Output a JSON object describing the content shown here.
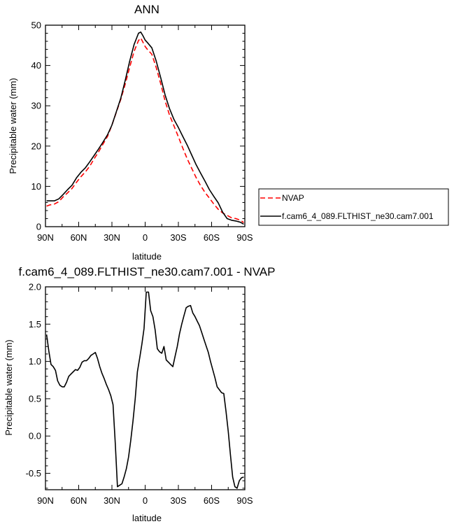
{
  "chart_data": [
    {
      "type": "line",
      "title": "ANN",
      "xlabel": "latitude",
      "ylabel": "Precipitable water (mm)",
      "xlim": [
        90,
        -90
      ],
      "ylim": [
        0,
        50
      ],
      "x_ticks": [
        90,
        60,
        30,
        0,
        -30,
        -60,
        -90
      ],
      "x_tick_labels": [
        "90N",
        "60N",
        "30N",
        "0",
        "30S",
        "60S",
        "90S"
      ],
      "y_ticks": [
        0,
        10,
        20,
        30,
        40,
        50
      ],
      "y_tick_labels": [
        "0",
        "10",
        "20",
        "30",
        "40",
        "50"
      ],
      "legend": {
        "placement": "outside-right"
      },
      "series": [
        {
          "name": "NVAP",
          "color": "#ff0000",
          "dash": "dashed",
          "x": [
            89,
            86,
            82,
            78,
            74,
            70,
            66,
            62,
            58,
            54,
            50,
            46,
            42,
            38,
            34,
            30,
            26,
            22,
            18,
            14,
            10,
            6,
            4,
            2,
            0,
            -2,
            -6,
            -10,
            -14,
            -18,
            -22,
            -26,
            -30,
            -34,
            -38,
            -42,
            -46,
            -50,
            -54,
            -58,
            -62,
            -66,
            -70,
            -74,
            -78,
            -82,
            -86,
            -89
          ],
          "y": [
            5.1,
            5.4,
            5.6,
            6.2,
            7.4,
            8.4,
            9.5,
            11.0,
            12.4,
            13.6,
            15.0,
            16.9,
            18.6,
            20.5,
            22.4,
            25.2,
            28.4,
            31.6,
            35.4,
            39.5,
            43.5,
            46.2,
            46.8,
            45.8,
            44.7,
            44.0,
            42.8,
            39.5,
            35.5,
            31.2,
            27.7,
            25.0,
            22.3,
            19.5,
            16.8,
            14.5,
            12.2,
            10.2,
            8.5,
            7.1,
            5.6,
            4.3,
            3.4,
            2.8,
            2.2,
            2.0,
            1.6,
            1.0
          ]
        },
        {
          "name": "f.cam6_4_089.FLTHIST_ne30.cam7.001",
          "color": "#000000",
          "dash": "solid",
          "x": [
            89,
            86,
            82,
            78,
            74,
            70,
            66,
            62,
            58,
            54,
            50,
            46,
            42,
            38,
            34,
            30,
            26,
            22,
            18,
            14,
            10,
            6,
            4,
            2,
            0,
            -2,
            -6,
            -10,
            -14,
            -18,
            -22,
            -26,
            -30,
            -34,
            -38,
            -42,
            -46,
            -50,
            -54,
            -58,
            -62,
            -66,
            -70,
            -74,
            -78,
            -82,
            -86,
            -89
          ],
          "y": [
            6.4,
            6.4,
            6.4,
            6.9,
            8.0,
            9.2,
            10.3,
            12.1,
            13.5,
            14.6,
            16.1,
            17.7,
            19.3,
            21.0,
            22.8,
            25.2,
            28.5,
            31.9,
            36.3,
            41.0,
            45.2,
            48.0,
            48.3,
            47.4,
            46.3,
            45.7,
            44.4,
            41.1,
            37.0,
            32.7,
            29.3,
            26.6,
            24.6,
            22.4,
            20.2,
            17.8,
            15.4,
            13.3,
            11.3,
            9.2,
            7.5,
            5.9,
            3.6,
            2.0,
            1.6,
            1.4,
            1.1,
            0.6
          ]
        }
      ]
    },
    {
      "type": "line",
      "title": "f.cam6_4_089.FLTHIST_ne30.cam7.001 - NVAP",
      "xlabel": "latitude",
      "ylabel": "Precipitable water (mm)",
      "xlim": [
        90,
        -90
      ],
      "ylim": [
        -0.72,
        2.0
      ],
      "x_ticks": [
        90,
        60,
        30,
        0,
        -30,
        -60,
        -90
      ],
      "x_tick_labels": [
        "90N",
        "60N",
        "30N",
        "0",
        "30S",
        "60S",
        "90S"
      ],
      "y_ticks": [
        -0.5,
        0,
        0.5,
        1,
        1.5,
        2
      ],
      "y_tick_labels": [
        "-0.5",
        "0.0",
        "0.5",
        "1.0",
        "1.5",
        "2.0"
      ],
      "series": [
        {
          "color": "#000000",
          "dash": "solid",
          "x": [
            89,
            87,
            85,
            83,
            81,
            79,
            77,
            75,
            73,
            71,
            69,
            67,
            65,
            63,
            61,
            59,
            57,
            55,
            53,
            51,
            49,
            47,
            45,
            43,
            41,
            39,
            37,
            35,
            33,
            31,
            29,
            27,
            25,
            23,
            21,
            19,
            17,
            15,
            13,
            11,
            9,
            7,
            5,
            3,
            1,
            -1,
            -3,
            -5,
            -7,
            -9,
            -11,
            -13,
            -15,
            -17,
            -19,
            -21,
            -23,
            -25,
            -27,
            -29,
            -31,
            -33,
            -35,
            -37,
            -39,
            -41,
            -43,
            -45,
            -47,
            -49,
            -51,
            -53,
            -55,
            -57,
            -59,
            -61,
            -63,
            -65,
            -67,
            -69,
            -71,
            -73,
            -75,
            -77,
            -79,
            -81,
            -83,
            -85,
            -87,
            -89
          ],
          "y": [
            1.36,
            1.14,
            0.96,
            0.93,
            0.88,
            0.74,
            0.68,
            0.66,
            0.66,
            0.72,
            0.8,
            0.83,
            0.86,
            0.89,
            0.88,
            0.92,
            0.99,
            1.01,
            1.01,
            1.04,
            1.08,
            1.1,
            1.12,
            1.04,
            0.93,
            0.84,
            0.77,
            0.69,
            0.62,
            0.54,
            0.42,
            -0.1,
            -0.68,
            -0.66,
            -0.64,
            -0.55,
            -0.44,
            -0.28,
            -0.06,
            0.2,
            0.5,
            0.86,
            1.04,
            1.23,
            1.44,
            1.93,
            1.93,
            1.68,
            1.6,
            1.42,
            1.17,
            1.13,
            1.11,
            1.2,
            1.02,
            0.99,
            0.96,
            0.93,
            1.07,
            1.2,
            1.37,
            1.5,
            1.61,
            1.72,
            1.74,
            1.75,
            1.65,
            1.6,
            1.54,
            1.48,
            1.39,
            1.3,
            1.21,
            1.12,
            1.0,
            0.89,
            0.78,
            0.66,
            0.62,
            0.58,
            0.57,
            0.33,
            0.06,
            -0.25,
            -0.55,
            -0.68,
            -0.7,
            -0.6,
            -0.56,
            -0.55
          ]
        }
      ]
    }
  ]
}
